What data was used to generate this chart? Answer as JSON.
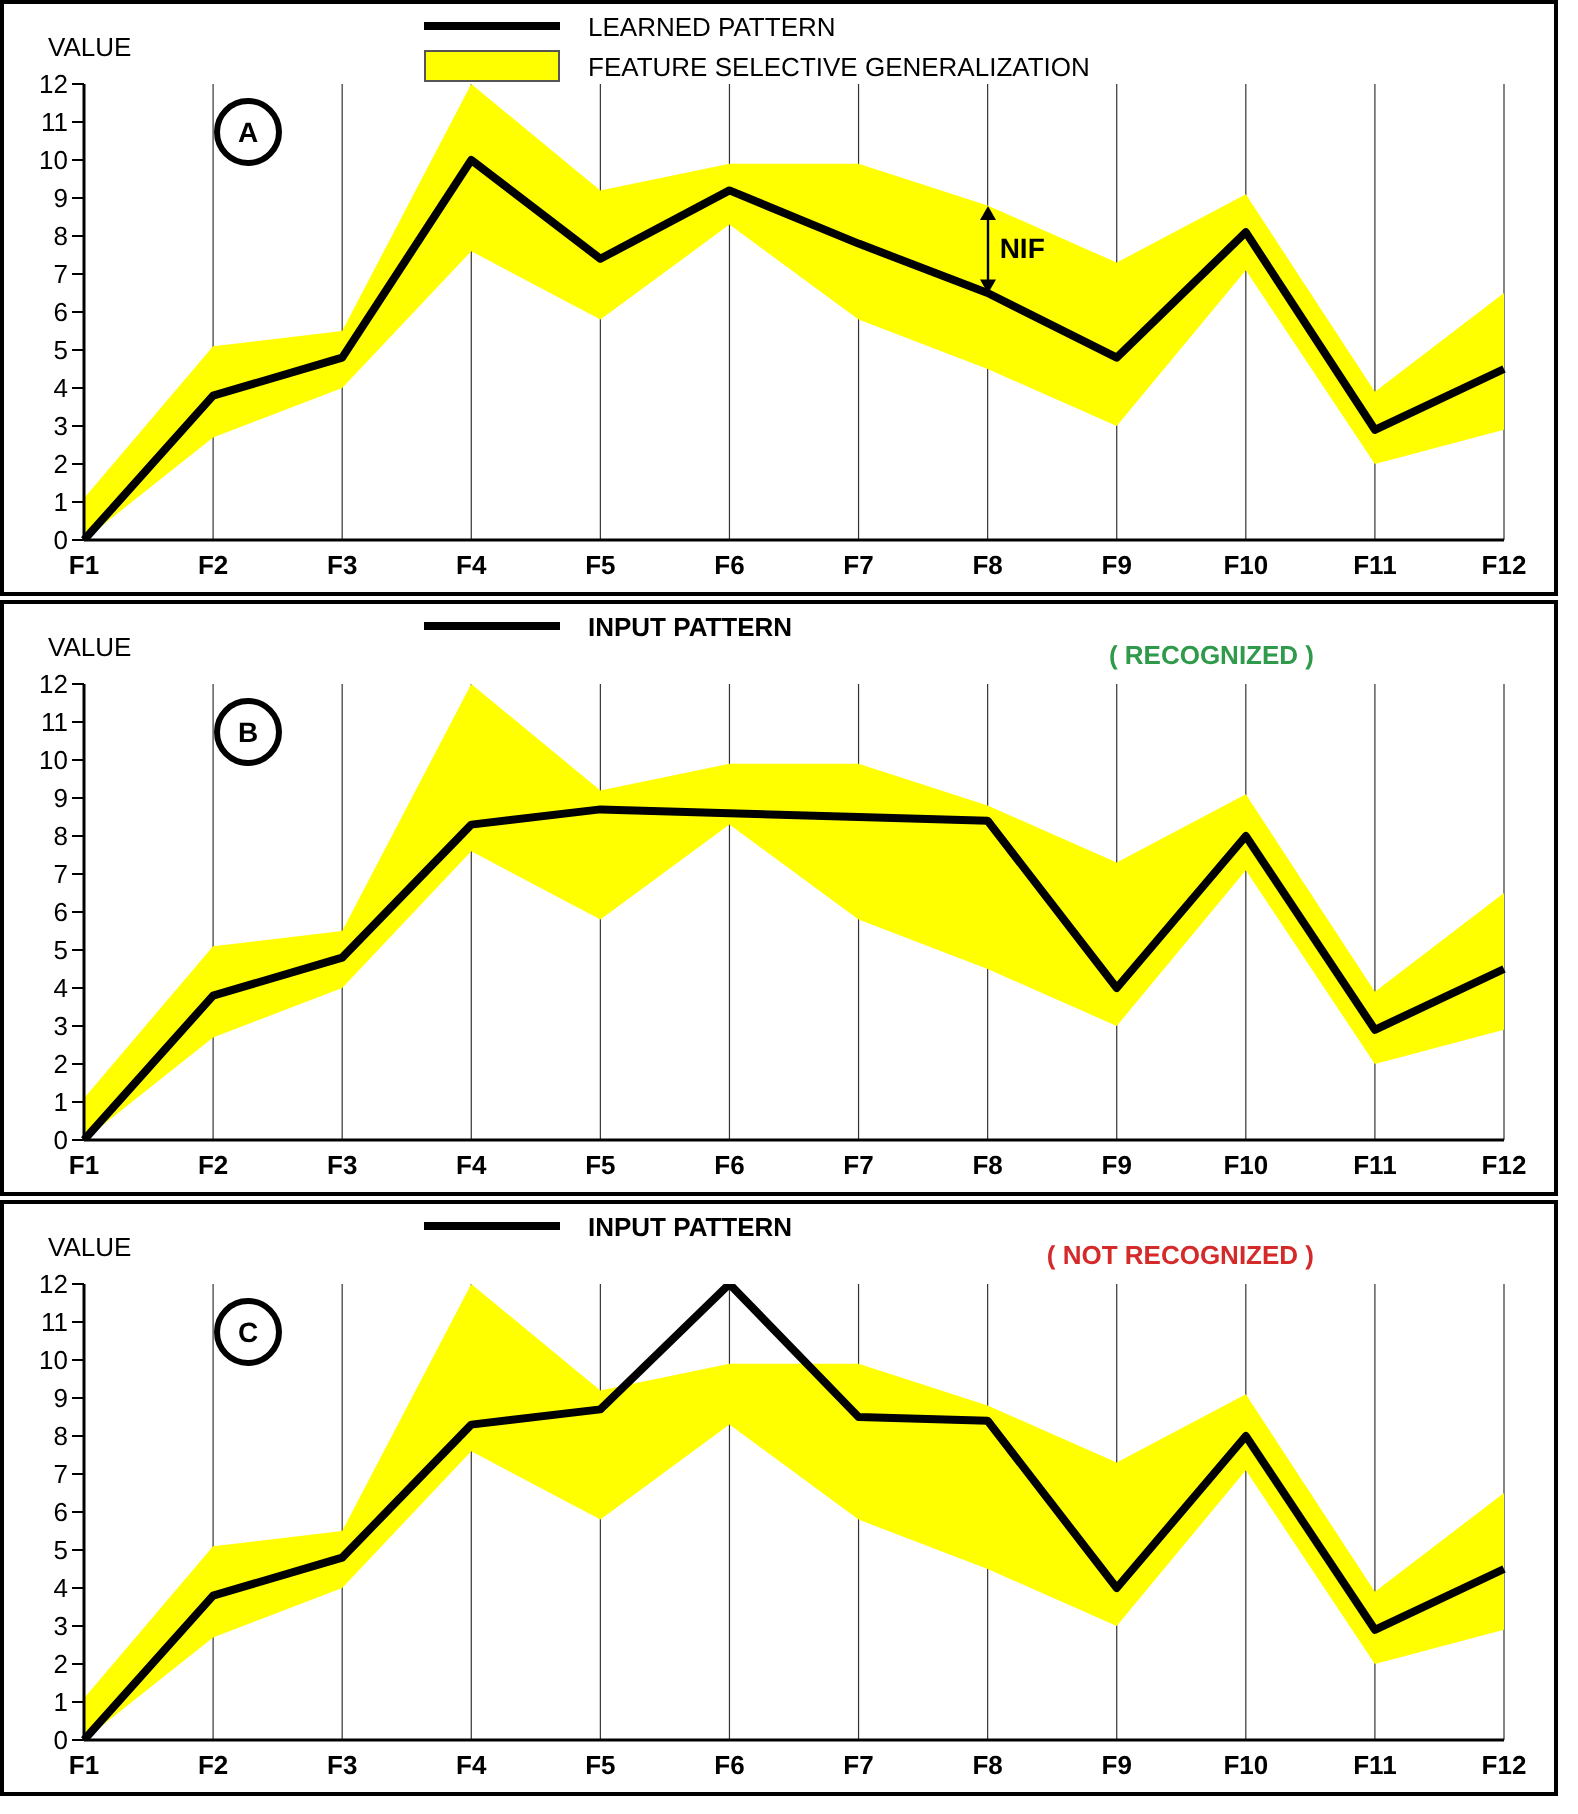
{
  "chart_data": [
    {
      "type": "line",
      "ylabel": "VALUE",
      "categories": [
        "F1",
        "F2",
        "F3",
        "F4",
        "F5",
        "F6",
        "F7",
        "F8",
        "F9",
        "F10",
        "F11",
        "F12"
      ],
      "ylim": [
        0,
        12
      ],
      "yticks": [
        0,
        1,
        2,
        3,
        4,
        5,
        6,
        7,
        8,
        9,
        10,
        11,
        12
      ],
      "grid": "x",
      "legend": "top",
      "annotations": [
        "A",
        "NIF",
        "FEATURE SELECTIVE GENERALIZATION"
      ],
      "series": [
        {
          "name": "LEARNED PATTERN",
          "type": "line",
          "color": "#000000",
          "values": [
            0,
            3.8,
            4.8,
            10.0,
            7.4,
            9.2,
            7.8,
            6.5,
            4.8,
            8.1,
            2.9,
            4.5
          ],
          "lower": [
            0,
            2.7,
            4.0,
            7.6,
            5.8,
            8.3,
            5.8,
            4.5,
            3.0,
            7.1,
            2.0,
            2.9
          ],
          "upper": [
            1.1,
            5.1,
            5.5,
            12,
            9.2,
            9.9,
            9.9,
            8.8,
            7.3,
            9.1,
            3.9,
            6.5
          ]
        }
      ]
    },
    {
      "type": "line",
      "ylabel": "VALUE",
      "categories": [
        "F1",
        "F2",
        "F3",
        "F4",
        "F5",
        "F6",
        "F7",
        "F8",
        "F9",
        "F10",
        "F11",
        "F12"
      ],
      "ylim": [
        0,
        12
      ],
      "yticks": [
        0,
        1,
        2,
        3,
        4,
        5,
        6,
        7,
        8,
        9,
        10,
        11,
        12
      ],
      "grid": "x",
      "legend": "top",
      "annotations": [
        "B",
        "( RECOGNIZED )"
      ],
      "series": [
        {
          "name": "INPUT PATTERN",
          "type": "line",
          "color": "#000000",
          "values": [
            0,
            3.8,
            4.8,
            8.3,
            8.7,
            8.6,
            8.5,
            8.4,
            4.0,
            8.0,
            2.9,
            4.5
          ],
          "lower": [
            0,
            2.7,
            4.0,
            7.6,
            5.8,
            8.3,
            5.8,
            4.5,
            3.0,
            7.1,
            2.0,
            2.9
          ],
          "upper": [
            1.1,
            5.1,
            5.5,
            12,
            9.2,
            9.9,
            9.9,
            8.8,
            7.3,
            9.1,
            3.9,
            6.5
          ]
        }
      ]
    },
    {
      "type": "line",
      "ylabel": "VALUE",
      "categories": [
        "F1",
        "F2",
        "F3",
        "F4",
        "F5",
        "F6",
        "F7",
        "F8",
        "F9",
        "F10",
        "F11",
        "F12"
      ],
      "ylim": [
        0,
        12
      ],
      "yticks": [
        0,
        1,
        2,
        3,
        4,
        5,
        6,
        7,
        8,
        9,
        10,
        11,
        12
      ],
      "grid": "x",
      "legend": "top",
      "annotations": [
        "C",
        "( NOT RECOGNIZED )"
      ],
      "series": [
        {
          "name": "INPUT PATTERN",
          "type": "line",
          "color": "#000000",
          "values": [
            0,
            3.8,
            4.8,
            8.3,
            8.7,
            12,
            8.5,
            8.4,
            4.0,
            8.0,
            2.9,
            4.5
          ],
          "lower": [
            0,
            2.7,
            4.0,
            7.6,
            5.8,
            8.3,
            5.8,
            4.5,
            3.0,
            7.1,
            2.0,
            2.9
          ],
          "upper": [
            1.1,
            5.1,
            5.5,
            12,
            9.2,
            9.9,
            9.9,
            8.8,
            7.3,
            9.1,
            3.9,
            6.5
          ]
        }
      ]
    }
  ]
}
